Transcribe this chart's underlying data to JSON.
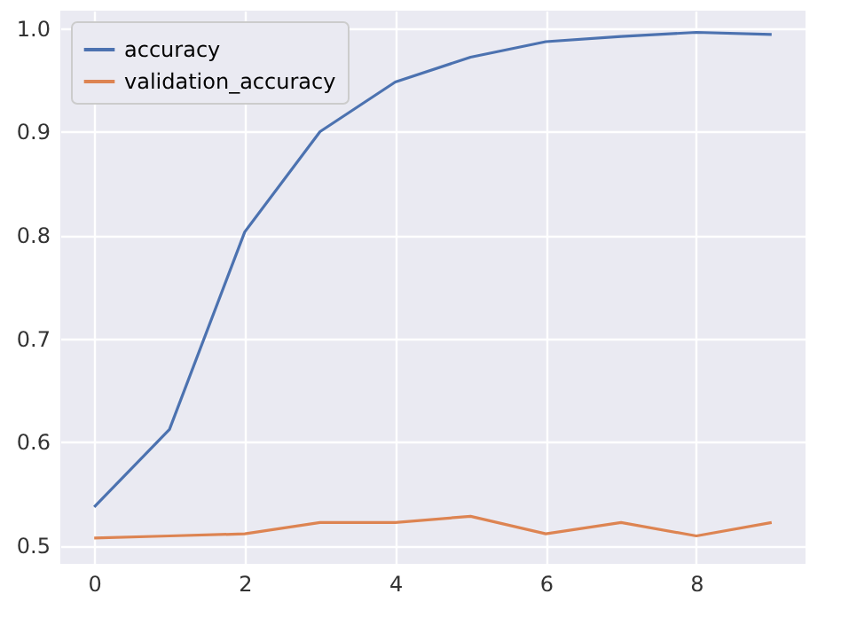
{
  "chart_data": {
    "type": "line",
    "x": [
      0,
      1,
      2,
      3,
      4,
      5,
      6,
      7,
      8,
      9
    ],
    "series": [
      {
        "name": "accuracy",
        "color": "#4c72b0",
        "values": [
          0.537,
          0.612,
          0.803,
          0.9,
          0.948,
          0.972,
          0.987,
          0.992,
          0.996,
          0.994
        ]
      },
      {
        "name": "validation_accuracy",
        "color": "#dd8452",
        "values": [
          0.507,
          0.509,
          0.511,
          0.522,
          0.522,
          0.528,
          0.511,
          0.522,
          0.509,
          0.522
        ]
      }
    ],
    "xlim": [
      -0.45,
      9.45
    ],
    "xticks": [
      0,
      2,
      4,
      6,
      8
    ],
    "ylim": [
      0.482,
      1.017
    ],
    "yticks": [
      0.5,
      0.6,
      0.7,
      0.8,
      0.9,
      {
        "value": 1,
        "label": "1.0"
      }
    ],
    "grid": true,
    "legend": "top left",
    "marker": "none",
    "line_style": "solid"
  }
}
